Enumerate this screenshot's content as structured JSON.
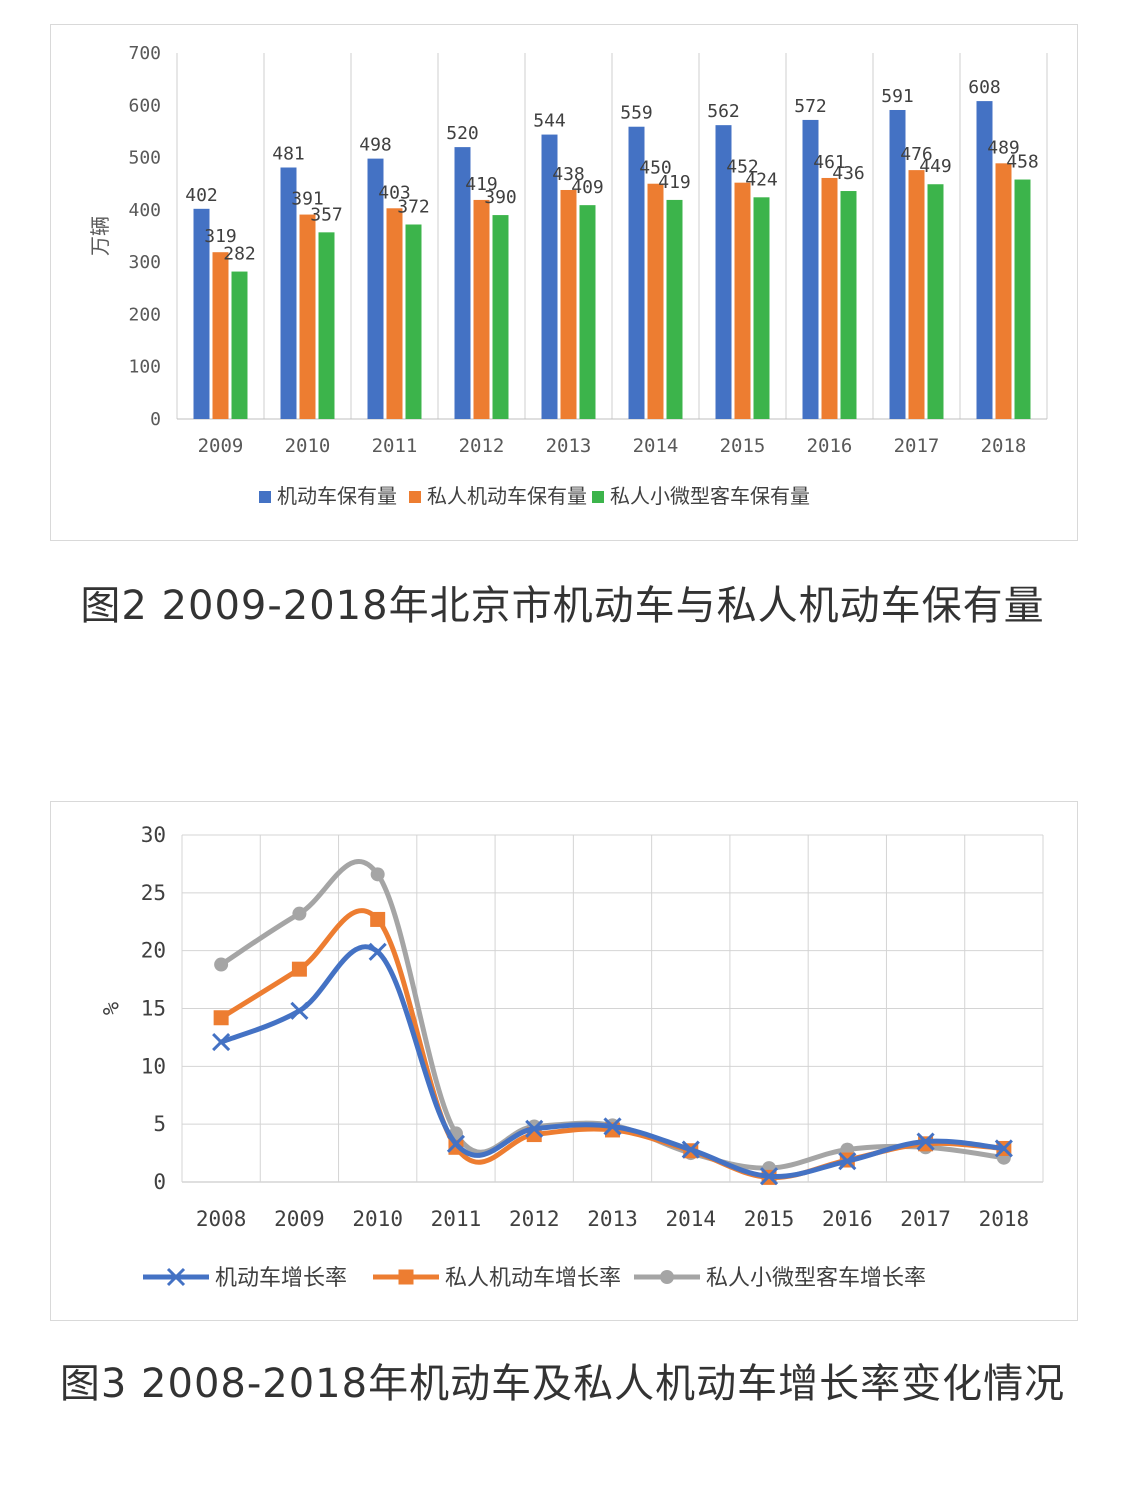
{
  "charts": [
    {
      "caption": "图2 2009-2018年北京市机动车与私人机动车保有量",
      "chart_data": {
        "type": "bar",
        "title": "",
        "ylabel": "万辆",
        "xlabel": "",
        "ylim": [
          0,
          700
        ],
        "yticks": [
          0,
          100,
          200,
          300,
          400,
          500,
          600,
          700
        ],
        "categories": [
          "2009",
          "2010",
          "2011",
          "2012",
          "2013",
          "2014",
          "2015",
          "2016",
          "2017",
          "2018"
        ],
        "series": [
          {
            "name": "机动车保有量",
            "color": "#4472c4",
            "values": [
              402,
              481,
              498,
              520,
              544,
              559,
              562,
              572,
              591,
              608
            ]
          },
          {
            "name": "私人机动车保有量",
            "color": "#ed7d31",
            "values": [
              319,
              391,
              403,
              419,
              438,
              450,
              452,
              461,
              476,
              489
            ]
          },
          {
            "name": "私人小微型客车保有量",
            "color": "#3cb44b",
            "values": [
              282,
              357,
              372,
              390,
              409,
              419,
              424,
              436,
              449,
              458
            ]
          }
        ],
        "grid": "vertical",
        "legend": "bottom",
        "data_labels": true
      }
    },
    {
      "caption": "图3 2008-2018年机动车及私人机动车增长率变化情况",
      "chart_data": {
        "type": "line",
        "title": "",
        "ylabel": "%",
        "xlabel": "",
        "ylim": [
          0,
          30
        ],
        "yticks": [
          0,
          5,
          10,
          15,
          20,
          25,
          30
        ],
        "categories": [
          "2008",
          "2009",
          "2010",
          "2011",
          "2012",
          "2013",
          "2014",
          "2015",
          "2016",
          "2017",
          "2018"
        ],
        "series": [
          {
            "name": "机动车增长率",
            "color": "#4472c4",
            "marker": "x",
            "values": [
              12.1,
              14.8,
              19.9,
              3.3,
              4.6,
              4.8,
              2.8,
              0.5,
              1.8,
              3.5,
              2.9
            ]
          },
          {
            "name": "私人机动车增长率",
            "color": "#ed7d31",
            "marker": "square",
            "values": [
              14.2,
              18.4,
              22.7,
              3.0,
              4.1,
              4.5,
              2.7,
              0.4,
              1.9,
              3.3,
              2.9
            ]
          },
          {
            "name": "私人小微型客车增长率",
            "color": "#a5a5a5",
            "marker": "circle",
            "values": [
              18.8,
              23.2,
              26.6,
              4.2,
              4.8,
              4.9,
              2.5,
              1.2,
              2.8,
              3.0,
              2.1
            ]
          }
        ],
        "grid": "both",
        "legend": "bottom",
        "smooth": true
      }
    }
  ]
}
